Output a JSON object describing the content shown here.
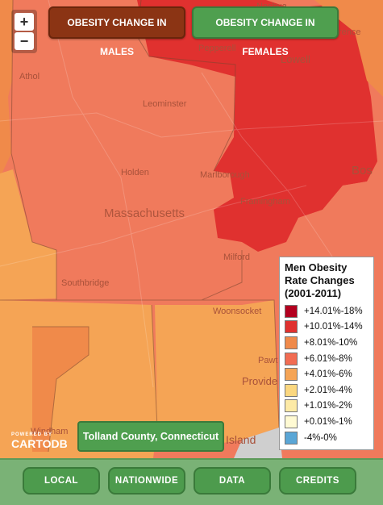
{
  "tabs": {
    "males": "OBESITY CHANGE IN MALES",
    "females": "OBESITY CHANGE IN FEMALES"
  },
  "zoom": {
    "in": "+",
    "out": "−"
  },
  "places": {
    "nashua": "Nashua",
    "pepperell": "Pepperell",
    "lowell": "Lowell",
    "lawrence": "rence",
    "athol": "Athol",
    "leominster": "Leominster",
    "holden": "Holden",
    "marlborough": "Marlborough",
    "boston": "Bos",
    "massachusetts": "Massachusetts",
    "framingham": "Framingham",
    "milford": "Milford",
    "southbridge": "Southbridge",
    "woonsocket": "Woonsocket",
    "pawtucket": "Pawt",
    "providence": "Provide",
    "windham": "Windham",
    "rhode_island": "Island"
  },
  "legend": {
    "title": "Men Obesity Rate Changes (2001-2011)",
    "items": [
      {
        "label": "+14.01%-18%",
        "color": "#b3001f"
      },
      {
        "label": "+10.01%-14%",
        "color": "#e0312f"
      },
      {
        "label": "+8.01%-10%",
        "color": "#f08a4a"
      },
      {
        "label": "+6.01%-8%",
        "color": "#f26c52"
      },
      {
        "label": "+4.01%-6%",
        "color": "#f5a455"
      },
      {
        "label": "+2.01%-4%",
        "color": "#fbd77f"
      },
      {
        "label": "+1.01%-2%",
        "color": "#fdeaa6"
      },
      {
        "label": "+0.01%-1%",
        "color": "#fffad3"
      },
      {
        "label": "-4%-0%",
        "color": "#5aa6d6"
      }
    ]
  },
  "county_label": "Tolland County, Connecticut",
  "attribution": {
    "powered_by": "POWERED BY",
    "brand": "CARTODB"
  },
  "footer": {
    "local": "LOCAL",
    "nationwide": "NATIONWIDE",
    "data": "DATA",
    "credits": "CREDITS"
  }
}
